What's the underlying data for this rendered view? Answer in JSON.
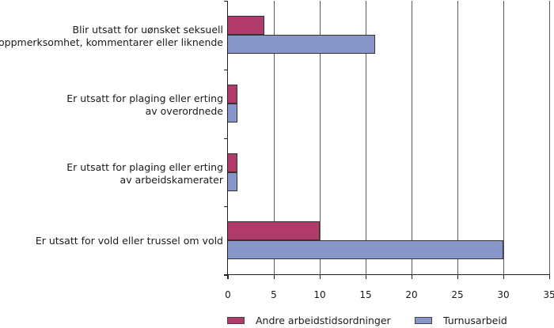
{
  "chart_data": {
    "type": "bar",
    "orientation": "horizontal",
    "title": "",
    "xlabel": "",
    "ylabel": "",
    "xlim": [
      0,
      35
    ],
    "x_ticks": [
      "0",
      "5",
      "10",
      "15",
      "20",
      "25",
      "30",
      "35"
    ],
    "grid": "vertical",
    "legend_position": "bottom",
    "categories": [
      "Blir utsatt for uønsket seksuell oppmerksomhet, kommentarer eller liknende",
      "Er utsatt for plaging eller erting av overordnede",
      "Er utsatt for plaging eller erting av arbeidskamerater",
      "Er utsatt for vold eller trussel om vold"
    ],
    "series": [
      {
        "name": "Andre arbeidstidsordninger",
        "color": "#b03a6a",
        "values": [
          4,
          1,
          1,
          10
        ]
      },
      {
        "name": "Turnusarbeid",
        "color": "#8895c8",
        "values": [
          16,
          1,
          1,
          30
        ]
      }
    ]
  },
  "labels": {
    "cat0_line1": "Blir utsatt for uønsket seksuell",
    "cat0_line2": "oppmerksomhet, kommentarer eller liknende",
    "cat1_line1": "Er utsatt for plaging eller erting",
    "cat1_line2": "av overordnede",
    "cat2_line1": "Er utsatt for plaging eller erting",
    "cat2_line2": "av arbeidskamerater",
    "cat3_line1": "Er utsatt for vold eller trussel om vold"
  },
  "legend": {
    "item0": "Andre arbeidstidsordninger",
    "item1": "Turnusarbeid"
  }
}
